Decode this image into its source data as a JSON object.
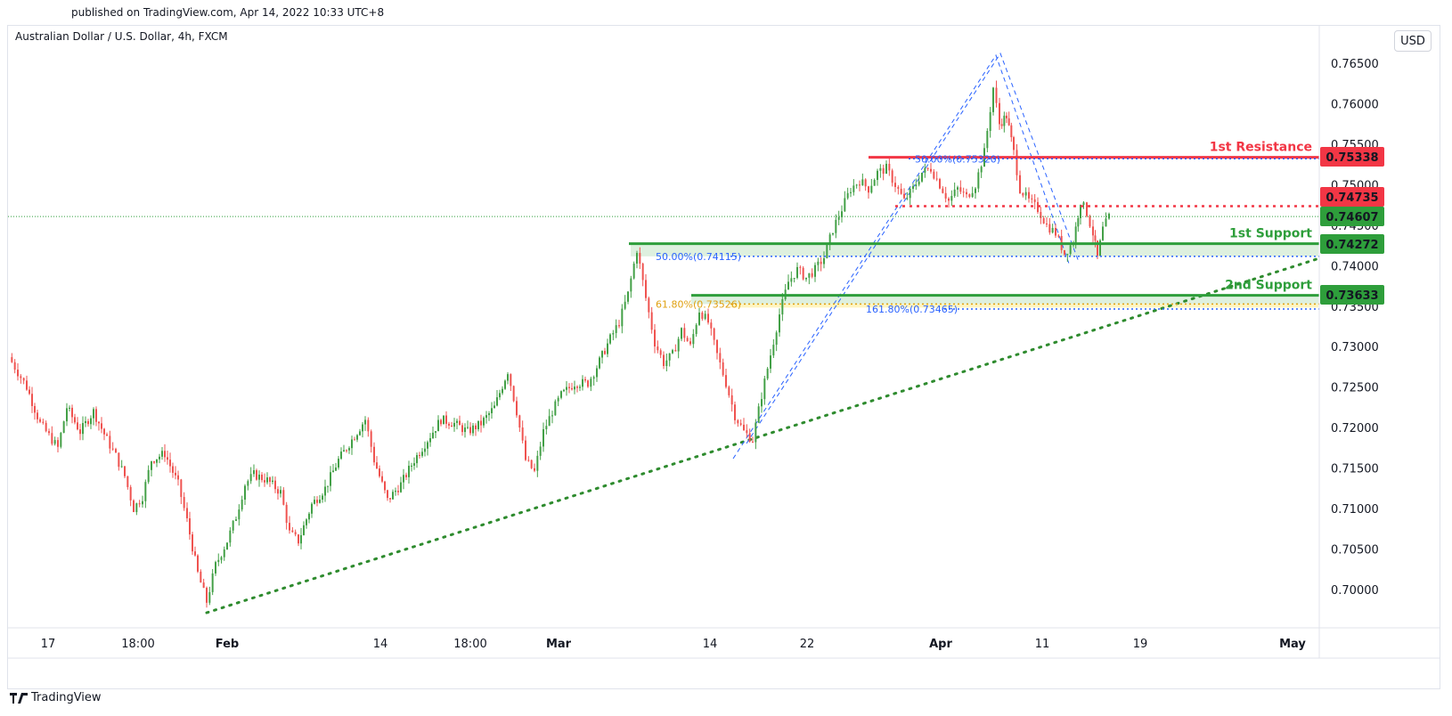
{
  "header": {
    "published": "published on TradingView.com, Apr 14, 2022 10:33 UTC+8",
    "symbol": "Australian Dollar / U.S. Dollar, 4h, FXCM",
    "currency_button": "USD",
    "brand": "TradingView"
  },
  "colors": {
    "up": "#43a047",
    "down": "#ef5350",
    "resistance": "#f23645",
    "support": "#2e9e3b",
    "fib_blue": "#2962ff",
    "fib_orange": "#e0a010",
    "trend": "#2e8b2e"
  },
  "chart_data": {
    "type": "candlestick",
    "title": "Australian Dollar / U.S. Dollar, 4h, FXCM",
    "y_axis": {
      "ticks": [
        "0.76500",
        "0.76000",
        "0.75500",
        "0.75000",
        "0.74500",
        "0.74000",
        "0.73500",
        "0.73000",
        "0.72500",
        "0.72000",
        "0.71500",
        "0.71000",
        "0.70500",
        "0.70000"
      ],
      "tick_values": [
        0.765,
        0.76,
        0.755,
        0.75,
        0.745,
        0.74,
        0.735,
        0.73,
        0.725,
        0.72,
        0.715,
        0.71,
        0.705,
        0.7
      ],
      "range": [
        0.6965,
        0.7668
      ]
    },
    "x_axis": {
      "ticks": [
        "17",
        "18:00",
        "Feb",
        "14",
        "18:00",
        "Mar",
        "14",
        "22",
        "Apr",
        "11",
        "19",
        "May"
      ],
      "bold": [
        "Feb",
        "Mar",
        "Apr",
        "May"
      ]
    },
    "price_labels": [
      {
        "text": "0.75338",
        "value": 0.75338,
        "color": "#f23645"
      },
      {
        "text": "0.74735",
        "value": 0.74735,
        "color": "#f23645"
      },
      {
        "text": "0.74607",
        "value": 0.74607,
        "color": "#2e9e3b"
      },
      {
        "text": "0.74272",
        "value": 0.74272,
        "color": "#2e9e3b"
      },
      {
        "text": "0.73633",
        "value": 0.73633,
        "color": "#2e9e3b"
      }
    ],
    "levels": [
      {
        "label": "1st Resistance",
        "value": 0.75338,
        "color": "#f23645"
      },
      {
        "label": "1st Support",
        "value": 0.74272,
        "color": "#2e9e3b"
      },
      {
        "label": "2nd Support",
        "value": 0.73633,
        "color": "#2e9e3b"
      }
    ],
    "fib_labels": [
      {
        "text": "50.00%(0.75320)",
        "value": 0.7532,
        "color": "#2962ff"
      },
      {
        "text": "50.00%(0.74115)",
        "value": 0.74115,
        "color": "#2962ff"
      },
      {
        "text": "61.80%(0.73526)",
        "value": 0.73526,
        "color": "#e0a010"
      },
      {
        "text": "161.80%(0.73465)",
        "value": 0.73465,
        "color": "#2962ff"
      }
    ],
    "last_price": 0.74607,
    "price_path": [
      [
        0,
        0.7287
      ],
      [
        20,
        0.725
      ],
      [
        35,
        0.7205
      ],
      [
        55,
        0.7175
      ],
      [
        65,
        0.7225
      ],
      [
        80,
        0.7195
      ],
      [
        95,
        0.722
      ],
      [
        110,
        0.7185
      ],
      [
        120,
        0.7165
      ],
      [
        130,
        0.714
      ],
      [
        140,
        0.71
      ],
      [
        150,
        0.7115
      ],
      [
        160,
        0.716
      ],
      [
        175,
        0.7168
      ],
      [
        190,
        0.713
      ],
      [
        200,
        0.7085
      ],
      [
        212,
        0.702
      ],
      [
        222,
        0.6985
      ],
      [
        232,
        0.703
      ],
      [
        245,
        0.706
      ],
      [
        255,
        0.709
      ],
      [
        265,
        0.713
      ],
      [
        275,
        0.7142
      ],
      [
        290,
        0.7135
      ],
      [
        305,
        0.712
      ],
      [
        315,
        0.707
      ],
      [
        325,
        0.706
      ],
      [
        340,
        0.7105
      ],
      [
        355,
        0.7125
      ],
      [
        370,
        0.716
      ],
      [
        385,
        0.7185
      ],
      [
        400,
        0.721
      ],
      [
        410,
        0.716
      ],
      [
        425,
        0.711
      ],
      [
        440,
        0.713
      ],
      [
        455,
        0.716
      ],
      [
        470,
        0.7185
      ],
      [
        485,
        0.721
      ],
      [
        500,
        0.7205
      ],
      [
        515,
        0.7195
      ],
      [
        530,
        0.7205
      ],
      [
        545,
        0.7225
      ],
      [
        560,
        0.727
      ],
      [
        570,
        0.722
      ],
      [
        580,
        0.716
      ],
      [
        590,
        0.7145
      ],
      [
        600,
        0.7195
      ],
      [
        610,
        0.722
      ],
      [
        620,
        0.724
      ],
      [
        635,
        0.7255
      ],
      [
        650,
        0.7255
      ],
      [
        660,
        0.7275
      ],
      [
        675,
        0.731
      ],
      [
        685,
        0.733
      ],
      [
        695,
        0.7365
      ],
      [
        705,
        0.742
      ],
      [
        715,
        0.736
      ],
      [
        725,
        0.7305
      ],
      [
        735,
        0.728
      ],
      [
        745,
        0.729
      ],
      [
        755,
        0.732
      ],
      [
        765,
        0.73
      ],
      [
        775,
        0.7345
      ],
      [
        785,
        0.733
      ],
      [
        795,
        0.729
      ],
      [
        805,
        0.7255
      ],
      [
        815,
        0.7215
      ],
      [
        825,
        0.7195
      ],
      [
        835,
        0.7185
      ],
      [
        845,
        0.724
      ],
      [
        855,
        0.729
      ],
      [
        865,
        0.734
      ],
      [
        875,
        0.738
      ],
      [
        885,
        0.7395
      ],
      [
        895,
        0.7385
      ],
      [
        905,
        0.7395
      ],
      [
        915,
        0.741
      ],
      [
        925,
        0.7445
      ],
      [
        935,
        0.747
      ],
      [
        945,
        0.7495
      ],
      [
        955,
        0.7505
      ],
      [
        965,
        0.7495
      ],
      [
        975,
        0.7515
      ],
      [
        985,
        0.752
      ],
      [
        995,
        0.75
      ],
      [
        1005,
        0.748
      ],
      [
        1015,
        0.7495
      ],
      [
        1025,
        0.7515
      ],
      [
        1035,
        0.752
      ],
      [
        1045,
        0.75
      ],
      [
        1055,
        0.748
      ],
      [
        1065,
        0.7495
      ],
      [
        1075,
        0.7485
      ],
      [
        1085,
        0.75
      ],
      [
        1095,
        0.754
      ],
      [
        1105,
        0.762
      ],
      [
        1112,
        0.7575
      ],
      [
        1120,
        0.7585
      ],
      [
        1128,
        0.754
      ],
      [
        1135,
        0.7495
      ],
      [
        1145,
        0.748
      ],
      [
        1155,
        0.747
      ],
      [
        1165,
        0.745
      ],
      [
        1175,
        0.744
      ],
      [
        1185,
        0.7415
      ],
      [
        1195,
        0.743
      ],
      [
        1203,
        0.748
      ],
      [
        1210,
        0.7465
      ],
      [
        1217,
        0.744
      ],
      [
        1222,
        0.741
      ],
      [
        1228,
        0.7445
      ],
      [
        1235,
        0.746
      ]
    ]
  }
}
